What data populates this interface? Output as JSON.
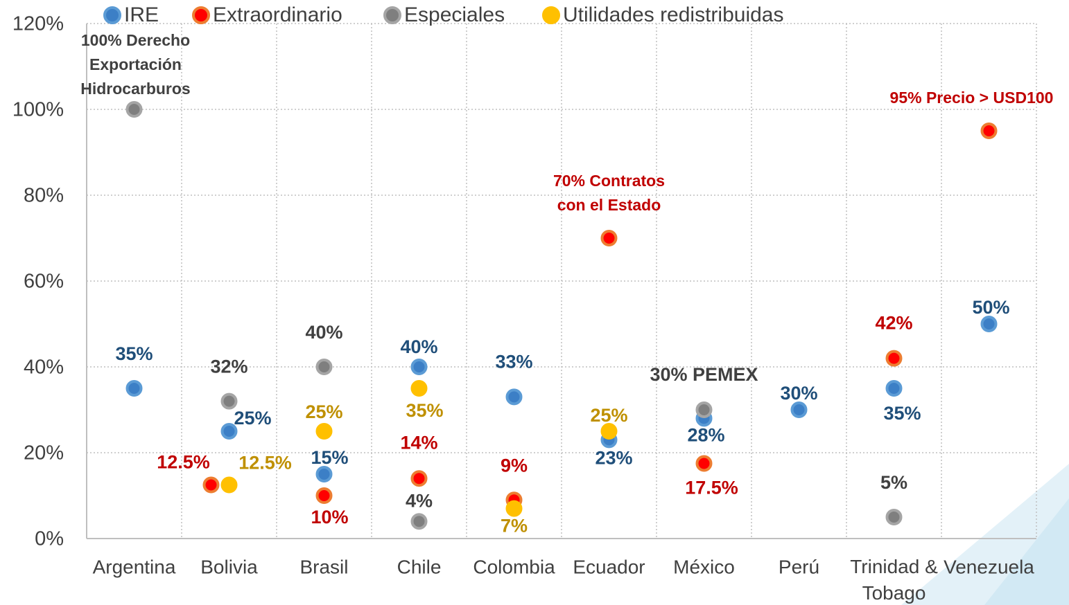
{
  "chart_data": {
    "type": "scatter",
    "categories": [
      "Argentina",
      "Bolivia",
      "Brasil",
      "Chile",
      "Colombia",
      "Ecuador",
      "México",
      "Perú",
      "Trinidad & Tobago",
      "Venezuela"
    ],
    "ylim": [
      0,
      120
    ],
    "yticks": [
      {
        "value": 0,
        "label": "0%"
      },
      {
        "value": 20,
        "label": "20%"
      },
      {
        "value": 40,
        "label": "40%"
      },
      {
        "value": 60,
        "label": "60%"
      },
      {
        "value": 80,
        "label": "80%"
      },
      {
        "value": 100,
        "label": "100%"
      },
      {
        "value": 120,
        "label": "120%"
      }
    ],
    "grid": true,
    "legend": "top",
    "series": [
      {
        "name": "IRE",
        "color": "#3c7fc6",
        "ring": "#5b9bd5",
        "label_color": "#1f4e79",
        "values": [
          35,
          25,
          15,
          40,
          33,
          23,
          28,
          30,
          35,
          50
        ],
        "value_labels": [
          "35%",
          "25%",
          "15%",
          "40%",
          "33%",
          "23%",
          "28%",
          "30%",
          "35%",
          "50%"
        ]
      },
      {
        "name": "Extraordinario",
        "color": "#ff0000",
        "ring": "#ed7d31",
        "label_color": "#c00000",
        "values": [
          null,
          12.5,
          10,
          14,
          9,
          70,
          17.5,
          null,
          42,
          95
        ],
        "value_labels": [
          null,
          "12.5%",
          "10%",
          "14%",
          "9%",
          [
            "70% Contratos",
            "con el Estado"
          ],
          "17.5%",
          null,
          "42%",
          "95% Precio > USD100"
        ]
      },
      {
        "name": "Especiales",
        "color": "#7f7f7f",
        "ring": "#a5a5a5",
        "label_color": "#404040",
        "values": [
          100,
          32,
          40,
          4,
          null,
          null,
          30,
          null,
          5,
          null
        ],
        "value_labels": [
          [
            "100% Derecho",
            "Exportación",
            "Hidrocarburos"
          ],
          "32%",
          "40%",
          "4%",
          null,
          null,
          "30% PEMEX",
          null,
          "5%",
          null
        ]
      },
      {
        "name": "Utilidades redistribuidas",
        "color": "#ffc000",
        "ring": "#ffc000",
        "label_color": "#bf9000",
        "values": [
          null,
          12.5,
          25,
          35,
          7,
          25,
          null,
          null,
          null,
          null
        ],
        "value_labels": [
          null,
          "12.5%",
          "25%",
          "35%",
          "7%",
          "25%",
          null,
          null,
          null,
          null
        ]
      }
    ]
  }
}
